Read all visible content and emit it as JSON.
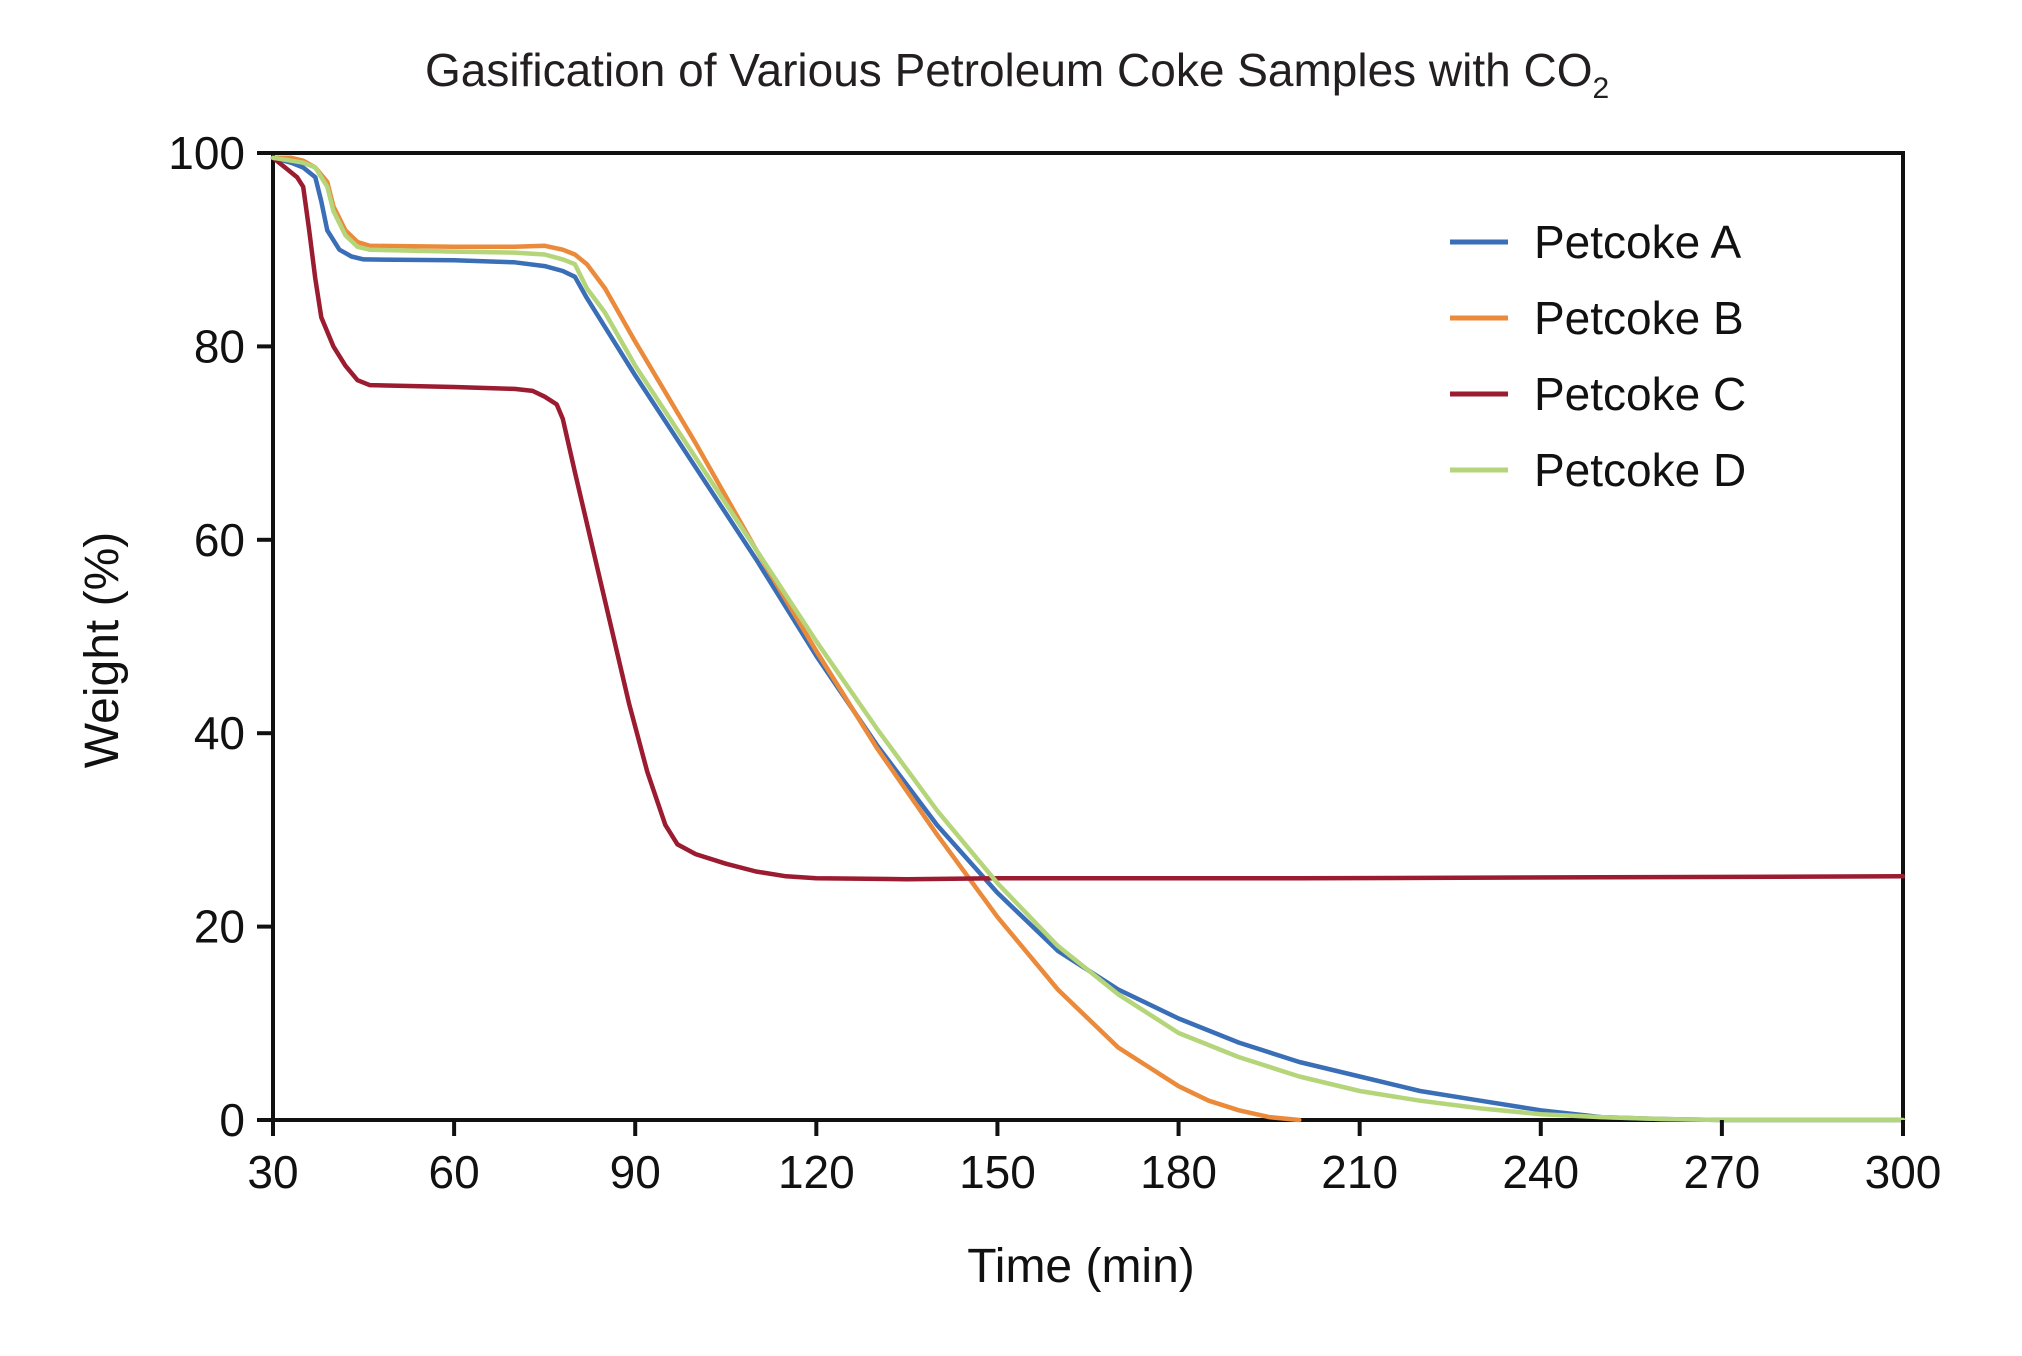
{
  "chart_data": {
    "type": "line",
    "title": "Gasification of Various Petroleum Coke Samples with CO",
    "title_subscript": "2",
    "xlabel": "Time (min)",
    "ylabel": "Weight (%)",
    "xlim": [
      30,
      300
    ],
    "ylim": [
      0,
      100
    ],
    "xticks": [
      30,
      60,
      90,
      120,
      150,
      180,
      210,
      240,
      270,
      300
    ],
    "yticks": [
      0,
      20,
      40,
      60,
      80,
      100
    ],
    "grid": false,
    "legend_position": "top-right",
    "series": [
      {
        "name": "Petcoke A",
        "color": "#3a6eb6",
        "points": [
          [
            30,
            99.5
          ],
          [
            33,
            99
          ],
          [
            35,
            98.5
          ],
          [
            37,
            97.5
          ],
          [
            38,
            95
          ],
          [
            39,
            92
          ],
          [
            41,
            90
          ],
          [
            43,
            89.3
          ],
          [
            45,
            89
          ],
          [
            60,
            88.9
          ],
          [
            70,
            88.7
          ],
          [
            75,
            88.3
          ],
          [
            78,
            87.8
          ],
          [
            80,
            87.2
          ],
          [
            82,
            85
          ],
          [
            85,
            82
          ],
          [
            90,
            77
          ],
          [
            100,
            67.5
          ],
          [
            110,
            58
          ],
          [
            120,
            48
          ],
          [
            130,
            38.8
          ],
          [
            140,
            30.5
          ],
          [
            150,
            23.5
          ],
          [
            160,
            17.5
          ],
          [
            170,
            13.5
          ],
          [
            180,
            10.5
          ],
          [
            190,
            8
          ],
          [
            200,
            6
          ],
          [
            210,
            4.5
          ],
          [
            220,
            3
          ],
          [
            230,
            2
          ],
          [
            240,
            1
          ],
          [
            250,
            0.3
          ],
          [
            260,
            0.1
          ],
          [
            270,
            0
          ],
          [
            300,
            0
          ]
        ]
      },
      {
        "name": "Petcoke B",
        "color": "#ea8a3a",
        "points": [
          [
            30,
            99.5
          ],
          [
            33,
            99.5
          ],
          [
            35,
            99.2
          ],
          [
            37,
            98.5
          ],
          [
            39,
            97
          ],
          [
            40,
            94.5
          ],
          [
            42,
            92
          ],
          [
            44,
            90.8
          ],
          [
            46,
            90.4
          ],
          [
            60,
            90.3
          ],
          [
            70,
            90.3
          ],
          [
            75,
            90.4
          ],
          [
            78,
            90
          ],
          [
            80,
            89.5
          ],
          [
            82,
            88.5
          ],
          [
            85,
            86
          ],
          [
            90,
            80.5
          ],
          [
            100,
            70
          ],
          [
            110,
            59
          ],
          [
            120,
            48.5
          ],
          [
            130,
            38.5
          ],
          [
            140,
            29.5
          ],
          [
            150,
            21
          ],
          [
            160,
            13.5
          ],
          [
            170,
            7.5
          ],
          [
            180,
            3.5
          ],
          [
            185,
            2
          ],
          [
            190,
            1
          ],
          [
            195,
            0.3
          ],
          [
            200,
            0
          ]
        ]
      },
      {
        "name": "Petcoke C",
        "color": "#9b1b30",
        "points": [
          [
            30,
            99.5
          ],
          [
            32,
            98.5
          ],
          [
            34,
            97.5
          ],
          [
            35,
            96.5
          ],
          [
            36,
            92
          ],
          [
            37,
            87
          ],
          [
            38,
            83
          ],
          [
            40,
            80
          ],
          [
            42,
            78
          ],
          [
            44,
            76.5
          ],
          [
            46,
            76
          ],
          [
            60,
            75.8
          ],
          [
            70,
            75.6
          ],
          [
            73,
            75.4
          ],
          [
            75,
            74.8
          ],
          [
            77,
            74
          ],
          [
            78,
            72.5
          ],
          [
            80,
            67
          ],
          [
            83,
            59
          ],
          [
            86,
            51
          ],
          [
            89,
            43
          ],
          [
            92,
            36
          ],
          [
            95,
            30.5
          ],
          [
            97,
            28.5
          ],
          [
            100,
            27.5
          ],
          [
            105,
            26.5
          ],
          [
            110,
            25.7
          ],
          [
            115,
            25.2
          ],
          [
            120,
            25
          ],
          [
            135,
            24.9
          ],
          [
            150,
            25
          ],
          [
            200,
            25
          ],
          [
            250,
            25.1
          ],
          [
            300,
            25.2
          ]
        ]
      },
      {
        "name": "Petcoke D",
        "color": "#b5d57a",
        "points": [
          [
            30,
            99.5
          ],
          [
            33,
            99.2
          ],
          [
            35,
            99
          ],
          [
            37,
            98.5
          ],
          [
            39,
            96.5
          ],
          [
            40,
            94
          ],
          [
            42,
            91.5
          ],
          [
            44,
            90.3
          ],
          [
            46,
            90
          ],
          [
            60,
            89.8
          ],
          [
            70,
            89.7
          ],
          [
            75,
            89.5
          ],
          [
            78,
            89
          ],
          [
            80,
            88.5
          ],
          [
            82,
            86
          ],
          [
            85,
            83.5
          ],
          [
            90,
            78
          ],
          [
            100,
            68.5
          ],
          [
            110,
            59
          ],
          [
            120,
            49.5
          ],
          [
            130,
            40.5
          ],
          [
            140,
            32
          ],
          [
            150,
            24.5
          ],
          [
            160,
            18
          ],
          [
            170,
            13
          ],
          [
            180,
            9
          ],
          [
            190,
            6.5
          ],
          [
            200,
            4.5
          ],
          [
            210,
            3
          ],
          [
            220,
            2
          ],
          [
            230,
            1.2
          ],
          [
            240,
            0.6
          ],
          [
            250,
            0.3
          ],
          [
            260,
            0.1
          ],
          [
            270,
            0
          ],
          [
            300,
            0
          ]
        ]
      }
    ]
  }
}
